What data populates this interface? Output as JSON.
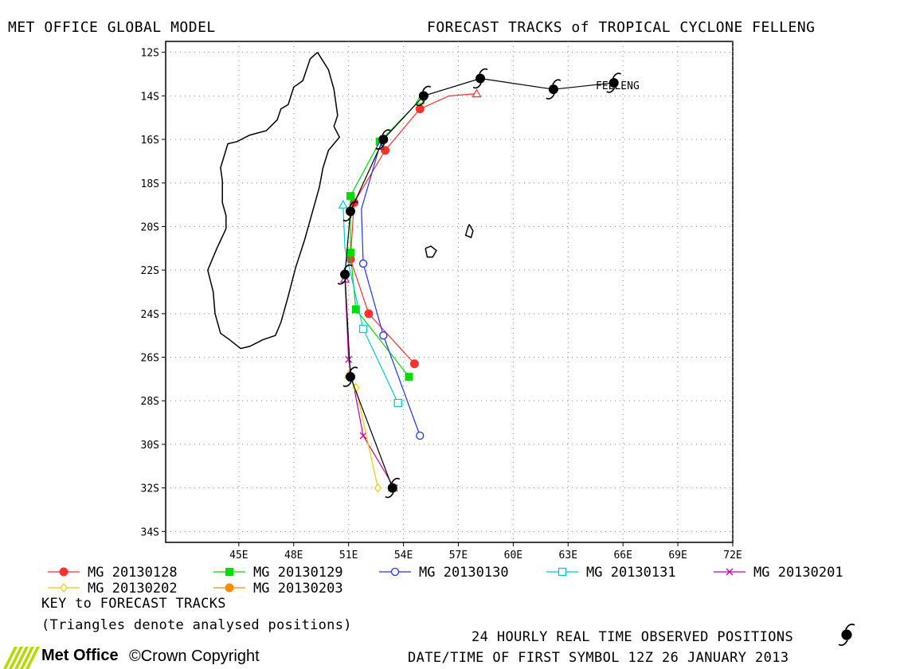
{
  "header": {
    "left": "MET OFFICE GLOBAL MODEL",
    "right": "FORECAST TRACKS of TROPICAL CYCLONE FELLENG"
  },
  "storm_label": "FELLENG",
  "chart_data": {
    "type": "line",
    "xlim": [
      41,
      72
    ],
    "ylim": [
      -34.5,
      -11.5
    ],
    "x_ticks": [
      {
        "value": 45,
        "label": "45E"
      },
      {
        "value": 48,
        "label": "48E"
      },
      {
        "value": 51,
        "label": "51E"
      },
      {
        "value": 54,
        "label": "54E"
      },
      {
        "value": 57,
        "label": "57E"
      },
      {
        "value": 60,
        "label": "60E"
      },
      {
        "value": 63,
        "label": "63E"
      },
      {
        "value": 66,
        "label": "66E"
      },
      {
        "value": 69,
        "label": "69E"
      },
      {
        "value": 72,
        "label": "72E"
      }
    ],
    "y_ticks": [
      {
        "value": -12,
        "label": "12S"
      },
      {
        "value": -14,
        "label": "14S"
      },
      {
        "value": -16,
        "label": "16S"
      },
      {
        "value": -18,
        "label": "18S"
      },
      {
        "value": -20,
        "label": "20S"
      },
      {
        "value": -22,
        "label": "22S"
      },
      {
        "value": -24,
        "label": "24S"
      },
      {
        "value": -26,
        "label": "26S"
      },
      {
        "value": -28,
        "label": "28S"
      },
      {
        "value": -30,
        "label": "30S"
      },
      {
        "value": -32,
        "label": "32S"
      },
      {
        "value": -34,
        "label": "34S"
      }
    ],
    "grid": true,
    "observed_track": [
      [
        65.5,
        -13.4
      ],
      [
        62.2,
        -13.7
      ],
      [
        58.2,
        -13.2
      ],
      [
        55.1,
        -14.0
      ],
      [
        52.9,
        -16.0
      ],
      [
        51.1,
        -19.3
      ],
      [
        50.8,
        -22.2
      ],
      [
        51.1,
        -26.9
      ],
      [
        53.4,
        -32.0
      ]
    ],
    "series": [
      {
        "name": "MG 20130128",
        "color": "#ff3030",
        "marker": "circle-filled",
        "points": [
          [
            58.0,
            -13.9
          ],
          [
            56.5,
            -14.0
          ],
          [
            54.9,
            -14.6
          ],
          [
            53.0,
            -16.5
          ],
          [
            51.3,
            -18.9
          ],
          [
            51.1,
            -21.5
          ],
          [
            52.1,
            -24.0
          ],
          [
            54.6,
            -26.3
          ]
        ],
        "marker_indices": [
          2,
          3,
          4,
          5,
          6,
          7
        ],
        "analysed_indices": [
          0
        ]
      },
      {
        "name": "MG 20130129",
        "color": "#00dd00",
        "marker": "square-filled",
        "points": [
          [
            54.9,
            -14.2
          ],
          [
            52.7,
            -16.1
          ],
          [
            51.1,
            -18.6
          ],
          [
            51.1,
            -21.2
          ],
          [
            51.4,
            -23.8
          ],
          [
            54.3,
            -26.9
          ]
        ],
        "marker_indices": [
          1,
          2,
          3,
          4,
          5
        ],
        "analysed_indices": [
          0
        ]
      },
      {
        "name": "MG 20130130",
        "color": "#2030ff",
        "marker": "circle-open",
        "points": [
          [
            52.7,
            -16.3
          ],
          [
            51.7,
            -19.2
          ],
          [
            51.8,
            -21.7
          ],
          [
            52.9,
            -25.0
          ],
          [
            54.9,
            -29.6
          ]
        ],
        "marker_indices": [
          2,
          3,
          4
        ],
        "analysed_indices": [
          0
        ]
      },
      {
        "name": "MG 20130131",
        "color": "#00cccc",
        "marker": "square-open",
        "points": [
          [
            50.7,
            -19.0
          ],
          [
            50.8,
            -21.0
          ],
          [
            51.8,
            -24.7
          ],
          [
            53.7,
            -28.1
          ]
        ],
        "marker_indices": [
          2,
          3
        ],
        "analysed_indices": [
          0
        ]
      },
      {
        "name": "MG 20130201",
        "color": "#cc00aa",
        "marker": "cross",
        "points": [
          [
            50.8,
            -22.4
          ],
          [
            51.0,
            -26.1
          ],
          [
            51.8,
            -29.6
          ],
          [
            53.5,
            -32.0
          ]
        ],
        "marker_indices": [
          1,
          2,
          3
        ],
        "analysed_indices": [
          0
        ]
      },
      {
        "name": "MG 20130202",
        "color": "#e8d000",
        "marker": "diamond-open",
        "points": [
          [
            51.0,
            -26.8
          ],
          [
            51.4,
            -27.4
          ],
          [
            52.6,
            -32.0
          ]
        ],
        "marker_indices": [
          1,
          2
        ],
        "analysed_indices": [
          0
        ]
      },
      {
        "name": "MG 20130203",
        "color": "#ff8c00",
        "marker": "circle-filled",
        "points": [
          [
            53.4,
            -32.0
          ],
          [
            53.6,
            -32.0
          ]
        ],
        "marker_indices": [],
        "analysed_indices": [
          0
        ]
      }
    ],
    "coastlines": {
      "madagascar": [
        [
          49.3,
          -12.0
        ],
        [
          49.9,
          -12.8
        ],
        [
          50.2,
          -13.7
        ],
        [
          50.4,
          -14.9
        ],
        [
          50.2,
          -15.4
        ],
        [
          50.5,
          -15.9
        ],
        [
          49.9,
          -16.5
        ],
        [
          49.6,
          -17.3
        ],
        [
          49.4,
          -18.2
        ],
        [
          49.0,
          -19.4
        ],
        [
          48.6,
          -20.6
        ],
        [
          48.1,
          -21.9
        ],
        [
          47.7,
          -23.2
        ],
        [
          47.3,
          -24.4
        ],
        [
          47.0,
          -25.0
        ],
        [
          46.3,
          -25.2
        ],
        [
          45.6,
          -25.5
        ],
        [
          45.1,
          -25.6
        ],
        [
          44.5,
          -25.2
        ],
        [
          44.0,
          -24.9
        ],
        [
          43.7,
          -24.0
        ],
        [
          43.6,
          -23.0
        ],
        [
          43.3,
          -22.0
        ],
        [
          43.8,
          -21.0
        ],
        [
          44.3,
          -20.1
        ],
        [
          44.3,
          -19.5
        ],
        [
          44.1,
          -18.9
        ],
        [
          44.1,
          -17.9
        ],
        [
          44.0,
          -17.3
        ],
        [
          44.4,
          -16.2
        ],
        [
          44.9,
          -16.1
        ],
        [
          45.6,
          -15.8
        ],
        [
          46.5,
          -15.6
        ],
        [
          47.1,
          -15.1
        ],
        [
          47.3,
          -14.6
        ],
        [
          47.7,
          -14.4
        ],
        [
          48.0,
          -13.6
        ],
        [
          48.5,
          -13.3
        ],
        [
          48.7,
          -12.8
        ],
        [
          48.9,
          -12.3
        ],
        [
          49.3,
          -12.0
        ]
      ],
      "reunion": [
        [
          55.2,
          -21.0
        ],
        [
          55.5,
          -20.9
        ],
        [
          55.8,
          -21.1
        ],
        [
          55.6,
          -21.4
        ],
        [
          55.3,
          -21.4
        ],
        [
          55.2,
          -21.0
        ]
      ],
      "mauritius": [
        [
          57.6,
          -19.9
        ],
        [
          57.8,
          -20.2
        ],
        [
          57.7,
          -20.5
        ],
        [
          57.4,
          -20.4
        ],
        [
          57.5,
          -20.1
        ],
        [
          57.6,
          -19.9
        ]
      ]
    }
  },
  "legend": {
    "items": [
      {
        "label": "MG 20130128",
        "color": "#ff3030",
        "marker": "circle-filled"
      },
      {
        "label": "MG 20130129",
        "color": "#00dd00",
        "marker": "square-filled"
      },
      {
        "label": "MG 20130130",
        "color": "#2030ff",
        "marker": "circle-open"
      },
      {
        "label": "MG 20130131",
        "color": "#00cccc",
        "marker": "square-open"
      },
      {
        "label": "MG 20130201",
        "color": "#cc00aa",
        "marker": "cross"
      },
      {
        "label": "MG 20130202",
        "color": "#e8d000",
        "marker": "diamond-open"
      },
      {
        "label": "MG 20130203",
        "color": "#ff8c00",
        "marker": "circle-filled"
      }
    ],
    "key_title": "KEY to FORECAST TRACKS",
    "key_note": "(Triangles denote analysed positions)"
  },
  "footer": {
    "observed_label": "24 HOURLY REAL TIME OBSERVED POSITIONS",
    "datetime_label": "DATE/TIME OF FIRST SYMBOL 12Z 26 JANUARY 2013",
    "logo_text": "Met Office",
    "copyright_text": "©Crown Copyright"
  }
}
